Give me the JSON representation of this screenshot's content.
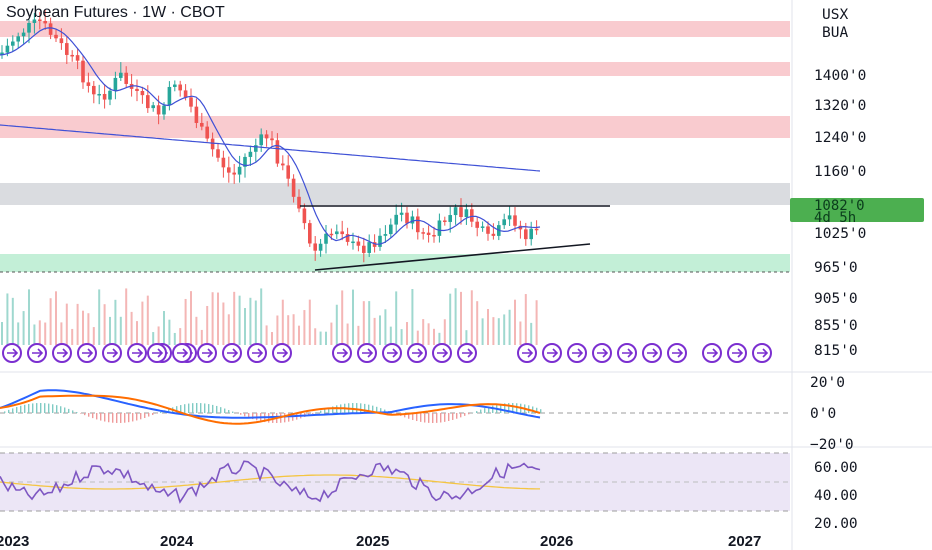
{
  "chart_data": {
    "type": "candlestick",
    "title": "Soybean Futures · 1W · CBOT",
    "currency_label": "USX",
    "unit_label": "BUA",
    "price_axis_ticks": [
      "1400'0",
      "1320'0",
      "1240'0",
      "1160'0",
      "1025'0",
      "965'0",
      "905'0",
      "855'0",
      "815'0"
    ],
    "last_price_label": "1082'0",
    "countdown_label": "4d 5h",
    "time_axis_labels": [
      "2023",
      "2024",
      "2025",
      "2026",
      "2027"
    ],
    "zones": [
      {
        "kind": "supply",
        "color": "#f7b9bf"
      },
      {
        "kind": "supply",
        "color": "#f7b9bf"
      },
      {
        "kind": "supply",
        "color": "#f7b9bf"
      },
      {
        "kind": "resistance",
        "color": "#d4d6db"
      },
      {
        "kind": "demand",
        "color": "#b8ecd0"
      }
    ],
    "patterns": [
      "horizontal resistance ~1082",
      "rising support trendline"
    ],
    "overlays": [
      "moving average (short)",
      "moving average (long)"
    ],
    "macd_axis_ticks": [
      "20'0",
      "0'0",
      "−20'0"
    ],
    "rsi_axis_ticks": [
      "60.00",
      "40.00",
      "20.00"
    ],
    "colors": {
      "up": "#26a69a",
      "down": "#ef5350",
      "ma": "#3f51d6",
      "macd": "#2962ff",
      "signal": "#ff6d00",
      "rsi": "#7e57c2",
      "rsi_ma": "#f4c542"
    }
  }
}
